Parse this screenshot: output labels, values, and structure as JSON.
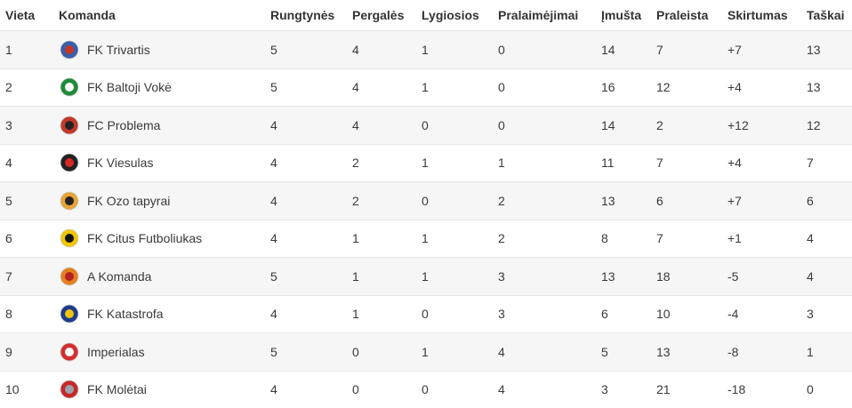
{
  "headers": {
    "position": "Vieta",
    "team": "Komanda",
    "played": "Rungtynės",
    "won": "Pergalės",
    "drawn": "Lygiosios",
    "lost": "Pralaimėjimai",
    "scored": "Įmušta",
    "conceded": "Praleista",
    "diff": "Skirtumas",
    "points": "Taškai"
  },
  "rows": [
    {
      "position": "1",
      "team": "FK Trivartis",
      "played": "5",
      "won": "4",
      "drawn": "1",
      "lost": "0",
      "scored": "14",
      "conceded": "7",
      "diff": "+7",
      "points": "13",
      "logo": "trivartis-logo",
      "color": "#3b5ea8",
      "accent": "#c0392b"
    },
    {
      "position": "2",
      "team": "FK Baltoji Vokė",
      "played": "5",
      "won": "4",
      "drawn": "1",
      "lost": "0",
      "scored": "16",
      "conceded": "12",
      "diff": "+4",
      "points": "13",
      "logo": "baltoji-voke-logo",
      "color": "#1e8a3a",
      "accent": "#ffffff"
    },
    {
      "position": "3",
      "team": "FC Problema",
      "played": "4",
      "won": "4",
      "drawn": "0",
      "lost": "0",
      "scored": "14",
      "conceded": "2",
      "diff": "+12",
      "points": "12",
      "logo": "problema-logo",
      "color": "#c0392b",
      "accent": "#222222"
    },
    {
      "position": "4",
      "team": "FK Viesulas",
      "played": "4",
      "won": "2",
      "drawn": "1",
      "lost": "1",
      "scored": "11",
      "conceded": "7",
      "diff": "+4",
      "points": "7",
      "logo": "viesulas-logo",
      "color": "#222222",
      "accent": "#d62828"
    },
    {
      "position": "5",
      "team": "FK Ozo tapyrai",
      "played": "4",
      "won": "2",
      "drawn": "0",
      "lost": "2",
      "scored": "13",
      "conceded": "6",
      "diff": "+7",
      "points": "6",
      "logo": "ozo-tapyrai-logo",
      "color": "#e8a33a",
      "accent": "#222222"
    },
    {
      "position": "6",
      "team": "FK Citus Futboliukas",
      "played": "4",
      "won": "1",
      "drawn": "1",
      "lost": "2",
      "scored": "8",
      "conceded": "7",
      "diff": "+1",
      "points": "4",
      "logo": "citus-futboliukas-logo",
      "color": "#f2c500",
      "accent": "#111111"
    },
    {
      "position": "7",
      "team": "A Komanda",
      "played": "5",
      "won": "1",
      "drawn": "1",
      "lost": "3",
      "scored": "13",
      "conceded": "18",
      "diff": "-5",
      "points": "4",
      "logo": "a-komanda-logo",
      "color": "#e67e22",
      "accent": "#b22222"
    },
    {
      "position": "8",
      "team": "FK Katastrofa",
      "played": "4",
      "won": "1",
      "drawn": "0",
      "lost": "3",
      "scored": "6",
      "conceded": "10",
      "diff": "-4",
      "points": "3",
      "logo": "katastrofa-logo",
      "color": "#1f3c88",
      "accent": "#f1c40f"
    },
    {
      "position": "9",
      "team": "Imperialas",
      "played": "5",
      "won": "0",
      "drawn": "1",
      "lost": "4",
      "scored": "5",
      "conceded": "13",
      "diff": "-8",
      "points": "1",
      "logo": "imperialas-logo",
      "color": "#d32f2f",
      "accent": "#ffffff"
    },
    {
      "position": "10",
      "team": "FK Molėtai",
      "played": "4",
      "won": "0",
      "drawn": "0",
      "lost": "4",
      "scored": "3",
      "conceded": "21",
      "diff": "-18",
      "points": "0",
      "logo": "moletai-logo",
      "color": "#c62828",
      "accent": "#9aa3ad"
    }
  ]
}
